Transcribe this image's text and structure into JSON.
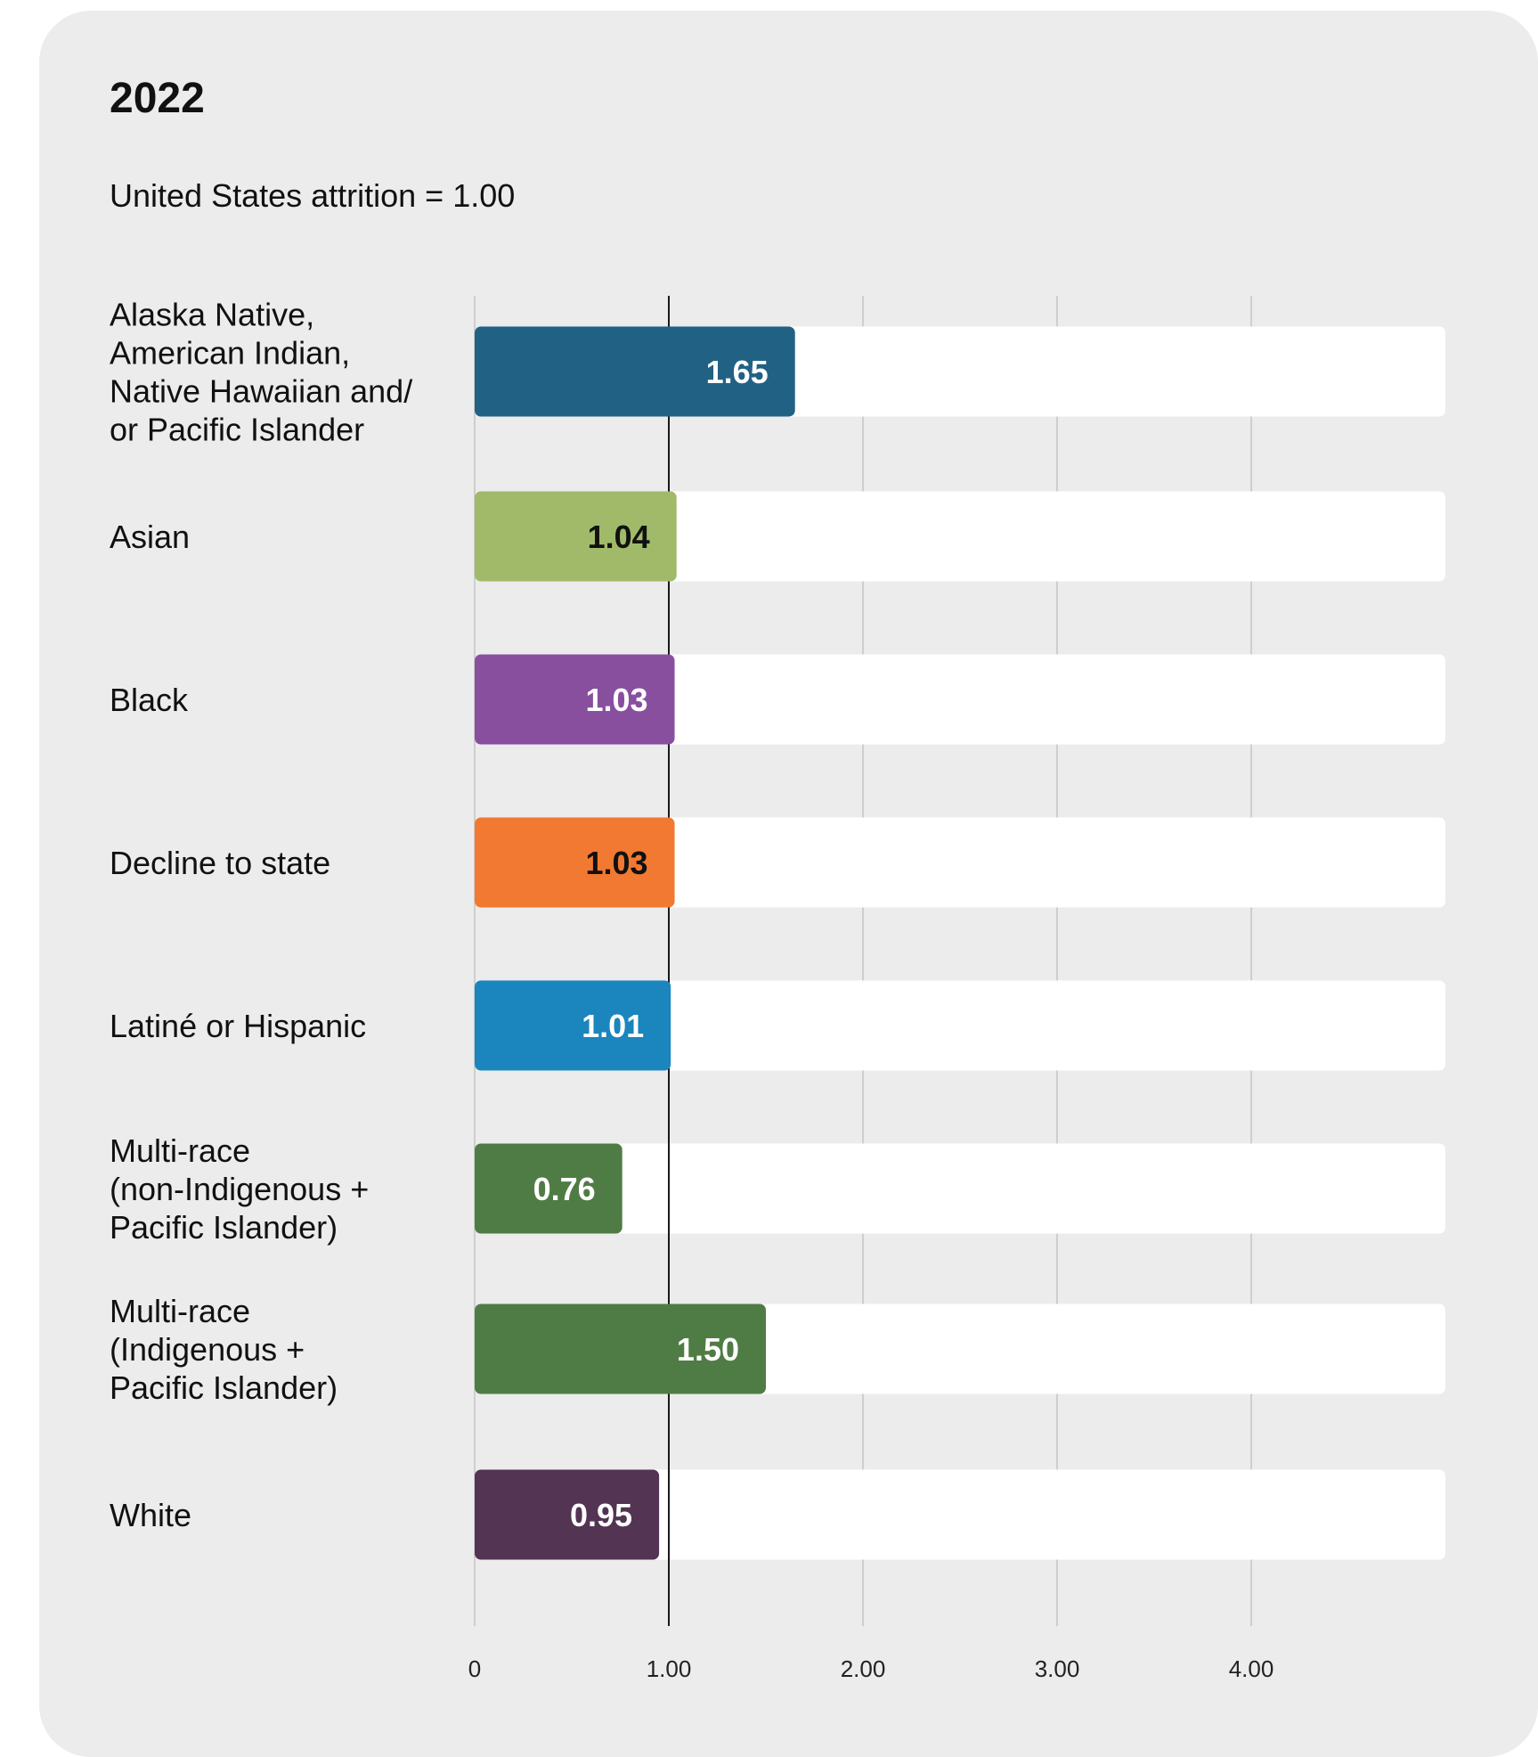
{
  "chart_data": {
    "type": "bar",
    "orientation": "horizontal",
    "title": "2022",
    "subtitle": "United States attrition = 1.00",
    "xlim": [
      0,
      5
    ],
    "reference_line": 1.0,
    "grid": true,
    "xticks": [
      "0",
      "1.00",
      "2.00",
      "3.00",
      "4.00"
    ],
    "categories": [
      {
        "lines": [
          "Alaska Native,",
          "American Indian,",
          "Native Hawaiian and/",
          "or Pacific Islander"
        ]
      },
      {
        "lines": [
          "Asian"
        ]
      },
      {
        "lines": [
          "Black"
        ]
      },
      {
        "lines": [
          "Decline to state"
        ]
      },
      {
        "lines": [
          "Latiné or Hispanic"
        ]
      },
      {
        "lines": [
          "Multi-race",
          "(non-Indigenous +",
          "Pacific Islander)"
        ]
      },
      {
        "lines": [
          "Multi-race",
          "(Indigenous +",
          "Pacific Islander)"
        ]
      },
      {
        "lines": [
          "White"
        ]
      }
    ],
    "values": [
      1.65,
      1.04,
      1.03,
      1.03,
      1.01,
      0.76,
      1.5,
      0.95
    ],
    "value_labels": [
      "1.65",
      "1.04",
      "1.03",
      "1.03",
      "1.01",
      "0.76",
      "1.50",
      "0.95"
    ],
    "colors": [
      "#216184",
      "#a0ba6a",
      "#884f9f",
      "#f27932",
      "#1b85bd",
      "#4f7c44",
      "#4f7c44",
      "#533453"
    ],
    "label_colors": [
      "#ffffff",
      "#111111",
      "#ffffff",
      "#111111",
      "#ffffff",
      "#ffffff",
      "#ffffff",
      "#ffffff"
    ],
    "track_color": "#ffffff"
  }
}
